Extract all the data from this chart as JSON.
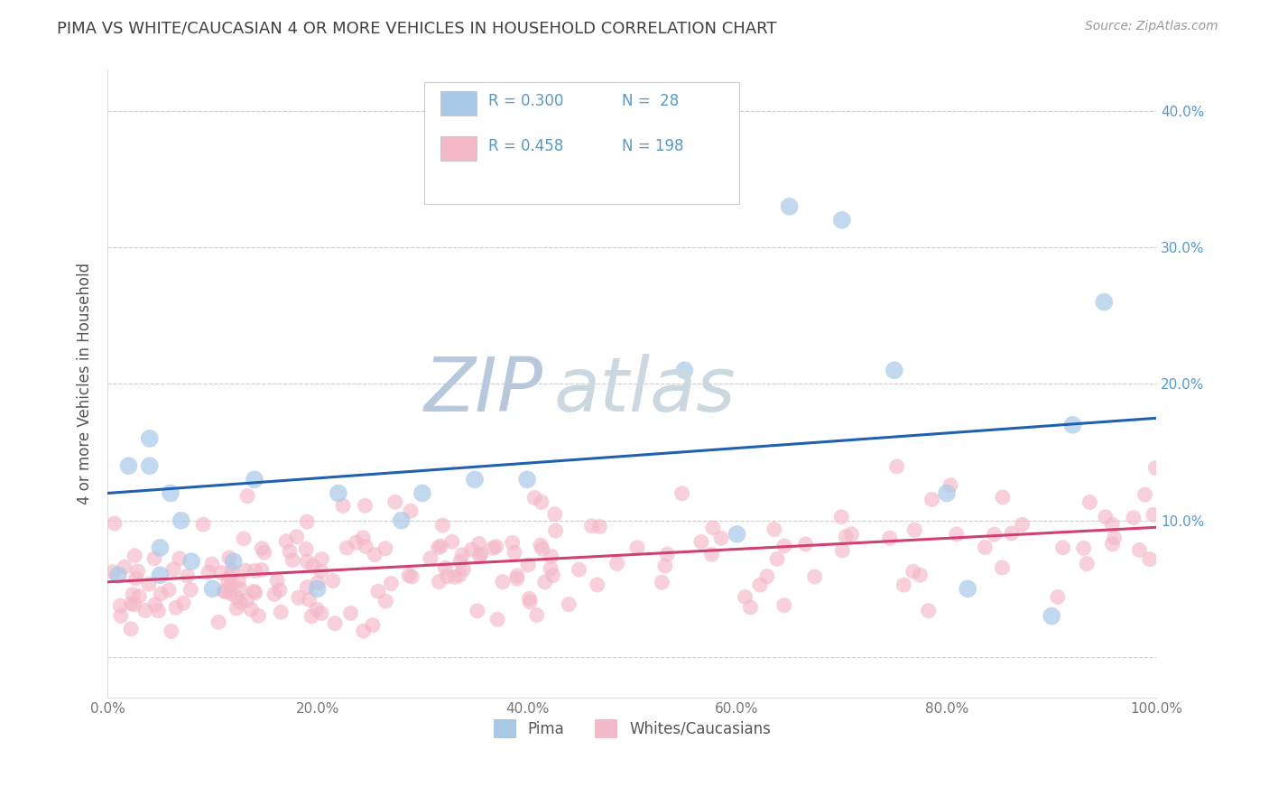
{
  "title": "PIMA VS WHITE/CAUCASIAN 4 OR MORE VEHICLES IN HOUSEHOLD CORRELATION CHART",
  "source": "Source: ZipAtlas.com",
  "ylabel": "4 or more Vehicles in Household",
  "xlim": [
    0,
    100
  ],
  "ylim": [
    -3,
    43
  ],
  "legend_r1": "R = 0.300",
  "legend_n1": "N =  28",
  "legend_r2": "R = 0.458",
  "legend_n2": "N = 198",
  "blue_color": "#a8c8e8",
  "pink_color": "#f4b8c8",
  "blue_line_color": "#2060b0",
  "pink_line_color": "#d04070",
  "title_color": "#404040",
  "axis_label_color": "#5599cc",
  "watermark_zip_color": "#c8d4e8",
  "watermark_atlas_color": "#d8e4e8",
  "background_color": "#ffffff",
  "grid_color": "#cccccc",
  "pima_x": [
    1,
    2,
    4,
    4,
    5,
    5,
    6,
    7,
    8,
    10,
    12,
    14,
    20,
    22,
    28,
    30,
    35,
    40,
    55,
    60,
    65,
    70,
    75,
    80,
    82,
    90,
    92,
    95
  ],
  "pima_y": [
    6,
    14,
    14,
    16,
    8,
    6,
    12,
    10,
    7,
    5,
    7,
    13,
    5,
    12,
    10,
    12,
    13,
    13,
    21,
    9,
    33,
    32,
    21,
    12,
    5,
    3,
    17,
    26
  ],
  "blue_line_x0": 0,
  "blue_line_y0": 12.0,
  "blue_line_x1": 100,
  "blue_line_y1": 17.5,
  "pink_line_x0": 0,
  "pink_line_y0": 5.5,
  "pink_line_x1": 100,
  "pink_line_y1": 9.5
}
